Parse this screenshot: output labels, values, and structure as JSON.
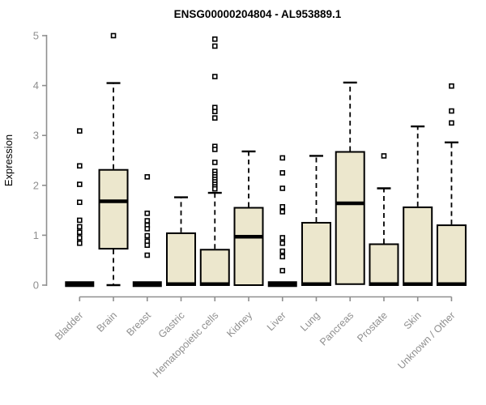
{
  "page": {
    "background": "#ffffff"
  },
  "chart_data": {
    "type": "boxplot",
    "title": "ENSG00000204804 - AL953889.1",
    "ylabel": "Expression",
    "xlabel": "",
    "ylim": [
      0,
      5
    ],
    "ytick_labels": [
      "0",
      "1",
      "2",
      "3",
      "4",
      "5"
    ],
    "grid": false,
    "legend": false,
    "categories": [
      "Bladder",
      "Brain",
      "Breast",
      "Gastric",
      "Hematopoietic cells",
      "Kidney",
      "Liver",
      "Lung",
      "Pancreas",
      "Prostate",
      "Skin",
      "Unknown / Other"
    ],
    "series": [
      {
        "name": "Bladder",
        "q1": 0,
        "median": 0.02,
        "q3": 0.04,
        "whisker_low": null,
        "whisker_high": null,
        "outliers": [
          3.09,
          2.39,
          2.02,
          1.66,
          1.3,
          1.17,
          1.06,
          0.95,
          0.84
        ]
      },
      {
        "name": "Brain",
        "q1": 0.73,
        "median": 1.68,
        "q3": 2.31,
        "whisker_low": 0,
        "whisker_high": 4.05,
        "outliers": [
          5.0
        ]
      },
      {
        "name": "Breast",
        "q1": 0,
        "median": 0.02,
        "q3": 0.04,
        "whisker_low": null,
        "whisker_high": null,
        "outliers": [
          2.17,
          1.44,
          1.29,
          1.2,
          1.13,
          0.99,
          0.88,
          0.8,
          0.6
        ]
      },
      {
        "name": "Gastric",
        "q1": 0,
        "median": 0.02,
        "q3": 1.04,
        "whisker_low": null,
        "whisker_high": 1.76,
        "outliers": []
      },
      {
        "name": "Hematopoietic cells",
        "q1": 0,
        "median": 0.02,
        "q3": 0.71,
        "whisker_low": null,
        "whisker_high": 1.85,
        "outliers": [
          4.93,
          4.79,
          4.18,
          3.56,
          3.48,
          3.35,
          2.78,
          2.72,
          2.46,
          2.28,
          2.22,
          2.17,
          2.12,
          2.07,
          2.02,
          1.97,
          1.93
        ]
      },
      {
        "name": "Kidney",
        "q1": 0,
        "median": 0.97,
        "q3": 1.55,
        "whisker_low": null,
        "whisker_high": 2.68,
        "outliers": []
      },
      {
        "name": "Liver",
        "q1": 0,
        "median": 0.02,
        "q3": 0.04,
        "whisker_low": null,
        "whisker_high": null,
        "outliers": [
          2.55,
          2.25,
          1.94,
          1.57,
          1.47,
          0.95,
          0.84,
          0.68,
          0.57,
          0.29
        ]
      },
      {
        "name": "Lung",
        "q1": 0,
        "median": 0.02,
        "q3": 1.25,
        "whisker_low": null,
        "whisker_high": 2.59,
        "outliers": []
      },
      {
        "name": "Pancreas",
        "q1": 0.02,
        "median": 1.64,
        "q3": 2.67,
        "whisker_low": null,
        "whisker_high": 4.06,
        "outliers": []
      },
      {
        "name": "Prostate",
        "q1": 0,
        "median": 0.02,
        "q3": 0.82,
        "whisker_low": null,
        "whisker_high": 1.94,
        "outliers": [
          2.59
        ]
      },
      {
        "name": "Skin",
        "q1": 0,
        "median": 0.02,
        "q3": 1.56,
        "whisker_low": null,
        "whisker_high": 3.18,
        "outliers": []
      },
      {
        "name": "Unknown / Other",
        "q1": 0,
        "median": 0.02,
        "q3": 1.2,
        "whisker_low": null,
        "whisker_high": 2.86,
        "outliers": [
          3.99,
          3.49,
          3.25
        ]
      }
    ]
  },
  "colors": {
    "box_fill": "#ECE7CD",
    "box_stroke": "#000000",
    "median": "#000000",
    "whisker": "#000000",
    "outlier": "#000000",
    "axis": "#8f8f8f",
    "tick_label": "#8f8f8f",
    "category_label": "#8f8f8f",
    "title": "#000000",
    "background": "#ffffff"
  }
}
